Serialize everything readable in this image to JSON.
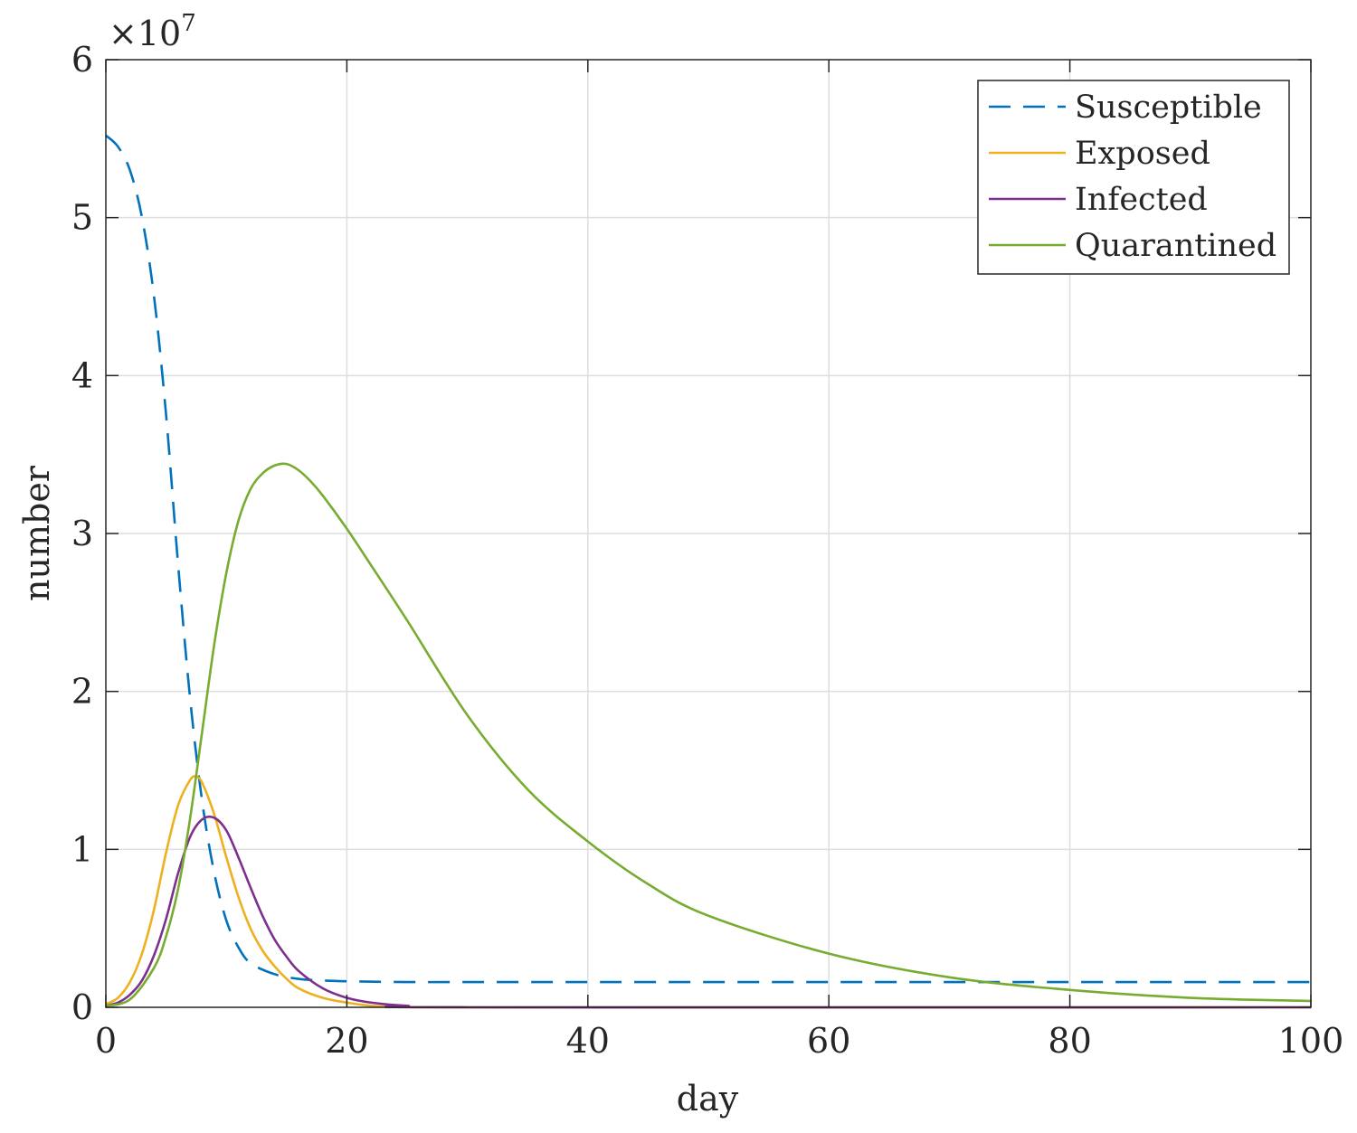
{
  "chart_data": {
    "type": "line",
    "title": "",
    "xlabel": "day",
    "ylabel": "number",
    "xlim": [
      0,
      100
    ],
    "ylim": [
      0,
      6
    ],
    "xticks": [
      0,
      20,
      40,
      60,
      80,
      100
    ],
    "yticks": [
      0,
      1,
      2,
      3,
      4,
      5,
      6
    ],
    "xtick_labels": [
      "0",
      "20",
      "40",
      "60",
      "80",
      "100"
    ],
    "ytick_labels": [
      "0",
      "1",
      "2",
      "3",
      "4",
      "5",
      "6"
    ],
    "y_exponent_base": "×10",
    "y_exponent_power": "7",
    "grid": true,
    "legend_position": "top-right",
    "series": [
      {
        "name": "Susceptible",
        "color": "#0072bd",
        "dash": true,
        "x": [
          0,
          1,
          2,
          3,
          4,
          5,
          6,
          7,
          8,
          9,
          10,
          11,
          12,
          14,
          16,
          18,
          20,
          25,
          30,
          40,
          60,
          80,
          100
        ],
        "y": [
          5.52,
          5.45,
          5.3,
          5.0,
          4.5,
          3.75,
          2.8,
          1.95,
          1.3,
          0.85,
          0.55,
          0.38,
          0.28,
          0.21,
          0.18,
          0.17,
          0.165,
          0.16,
          0.16,
          0.16,
          0.16,
          0.16,
          0.16
        ]
      },
      {
        "name": "Exposed",
        "color": "#edb120",
        "dash": false,
        "x": [
          0,
          1,
          2,
          3,
          4,
          5,
          6,
          7,
          7.5,
          8,
          9,
          10,
          11,
          12,
          13,
          14,
          15,
          16,
          18,
          20,
          22,
          25,
          30,
          100
        ],
        "y": [
          0.02,
          0.06,
          0.16,
          0.34,
          0.62,
          0.98,
          1.28,
          1.44,
          1.46,
          1.42,
          1.22,
          0.95,
          0.7,
          0.5,
          0.36,
          0.26,
          0.18,
          0.12,
          0.06,
          0.03,
          0.01,
          0.003,
          0.0,
          0.0
        ]
      },
      {
        "name": "Infected",
        "color": "#7e2f8e",
        "dash": false,
        "x": [
          0,
          1,
          2,
          3,
          4,
          5,
          6,
          7,
          8,
          9,
          10,
          11,
          12,
          13,
          14,
          15,
          16,
          18,
          20,
          22,
          25,
          30,
          100
        ],
        "y": [
          0.01,
          0.03,
          0.08,
          0.17,
          0.33,
          0.56,
          0.85,
          1.08,
          1.19,
          1.2,
          1.12,
          0.95,
          0.76,
          0.58,
          0.43,
          0.32,
          0.23,
          0.12,
          0.06,
          0.03,
          0.01,
          0.0,
          0.0
        ]
      },
      {
        "name": "Quarantined",
        "color": "#77ac30",
        "dash": false,
        "x": [
          0,
          2,
          4,
          5,
          6,
          7,
          8,
          9,
          10,
          11,
          12,
          13,
          14,
          15,
          16,
          17,
          18,
          20,
          22,
          25,
          30,
          35,
          40,
          45,
          50,
          60,
          70,
          80,
          90,
          100
        ],
        "y": [
          0.01,
          0.05,
          0.25,
          0.45,
          0.75,
          1.2,
          1.75,
          2.3,
          2.75,
          3.08,
          3.28,
          3.38,
          3.43,
          3.44,
          3.4,
          3.33,
          3.24,
          3.03,
          2.8,
          2.45,
          1.85,
          1.38,
          1.05,
          0.78,
          0.58,
          0.34,
          0.19,
          0.11,
          0.06,
          0.04
        ]
      }
    ]
  }
}
